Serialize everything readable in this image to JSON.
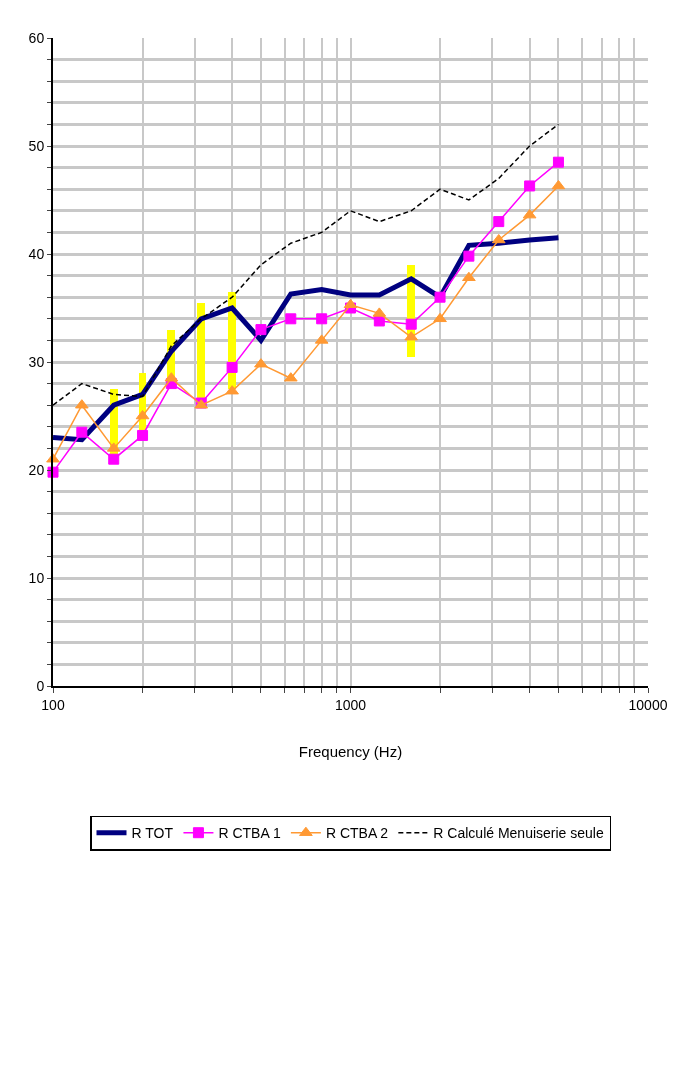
{
  "chart_data": {
    "type": "line",
    "xlabel": "Frequency (Hz)",
    "x": [
      100,
      125,
      160,
      200,
      250,
      315,
      400,
      500,
      630,
      800,
      1000,
      1250,
      1600,
      2000,
      2500,
      3150,
      4000,
      5000
    ],
    "series": [
      {
        "type": "bar",
        "color": "#ffff00",
        "x": [
          160,
          200,
          250,
          315,
          400,
          1600
        ],
        "base": [
          21,
          23.5,
          28,
          26,
          27.5,
          30.5
        ],
        "values": [
          6.5,
          5.5,
          5,
          9.5,
          9,
          8.5
        ]
      },
      {
        "name": "R TOT",
        "color": "#000080",
        "marker": "none",
        "line_style": "solid",
        "values": [
          23,
          22.8,
          26,
          27,
          31,
          34,
          35,
          32,
          36.3,
          36.7,
          36.2,
          36.2,
          37.7,
          36,
          40.8,
          41,
          41.3,
          41.5
        ]
      },
      {
        "name": "R CTBA 1",
        "color": "#ff00ff",
        "marker": "square",
        "line_style": "solid",
        "values": [
          19.8,
          23.5,
          21,
          23.2,
          28,
          26.2,
          29.5,
          33,
          34,
          34,
          35,
          33.8,
          33.5,
          36,
          39.8,
          43,
          46.3,
          48.5
        ]
      },
      {
        "name": "R CTBA 2",
        "color": "#ff9933",
        "marker": "triangle",
        "line_style": "solid",
        "values": [
          21,
          26,
          22,
          25,
          28.5,
          26,
          27.3,
          29.8,
          28.5,
          32,
          35.3,
          34.5,
          32.3,
          34,
          37.8,
          41.3,
          43.6,
          46.3
        ]
      },
      {
        "name": "R Calculé Menuiserie seule",
        "color": "#000000",
        "marker": "none",
        "line_style": "dashed",
        "values": [
          26,
          28,
          27,
          26.8,
          31.5,
          34,
          36,
          39,
          41,
          42,
          44,
          43,
          44,
          46,
          45,
          47,
          50,
          52
        ]
      }
    ],
    "log": "x",
    "xlim": [
      100,
      10000
    ],
    "xticks": [
      100,
      {
        "value": 200,
        "label": null
      },
      {
        "value": 300,
        "label": null
      },
      {
        "value": 400,
        "label": null
      },
      {
        "value": 500,
        "label": null
      },
      {
        "value": 600,
        "label": null
      },
      {
        "value": 700,
        "label": null
      },
      {
        "value": 800,
        "label": null
      },
      {
        "value": 900,
        "label": null
      },
      1000,
      {
        "value": 2000,
        "label": null
      },
      {
        "value": 3000,
        "label": null
      },
      {
        "value": 4000,
        "label": null
      },
      {
        "value": 5000,
        "label": null
      },
      {
        "value": 6000,
        "label": null
      },
      {
        "value": 7000,
        "label": null
      },
      {
        "value": 8000,
        "label": null
      },
      {
        "value": 9000,
        "label": null
      },
      10000
    ],
    "ylim": [
      0,
      60
    ],
    "yticks": [
      0,
      {
        "value": 2,
        "label": null
      },
      {
        "value": 4,
        "label": null
      },
      {
        "value": 6,
        "label": null
      },
      {
        "value": 8,
        "label": null
      },
      10,
      {
        "value": 12,
        "label": null
      },
      {
        "value": 14,
        "label": null
      },
      {
        "value": 16,
        "label": null
      },
      {
        "value": 18,
        "label": null
      },
      20,
      {
        "value": 22,
        "label": null
      },
      {
        "value": 24,
        "label": null
      },
      {
        "value": 26,
        "label": null
      },
      {
        "value": 28,
        "label": null
      },
      30,
      {
        "value": 32,
        "label": null
      },
      {
        "value": 34,
        "label": null
      },
      {
        "value": 36,
        "label": null
      },
      {
        "value": 38,
        "label": null
      },
      40,
      {
        "value": 42,
        "label": null
      },
      {
        "value": 44,
        "label": null
      },
      {
        "value": 46,
        "label": null
      },
      {
        "value": 48,
        "label": null
      },
      50,
      {
        "value": 52,
        "label": null
      },
      {
        "value": 54,
        "label": null
      },
      {
        "value": 56,
        "label": null
      },
      {
        "value": 58,
        "label": null
      },
      60
    ],
    "grid": true,
    "legend": "bottom"
  }
}
